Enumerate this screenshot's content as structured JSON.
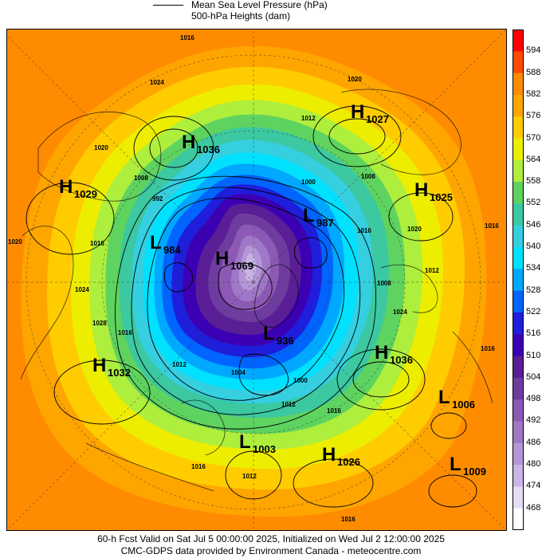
{
  "header": {
    "line1": "Mean Sea Level Pressure (hPa)",
    "line2": "500-hPa Heights (dam)"
  },
  "color_scale": {
    "ticks": [
      "594",
      "588",
      "582",
      "576",
      "570",
      "564",
      "558",
      "552",
      "546",
      "540",
      "534",
      "528",
      "522",
      "516",
      "510",
      "504",
      "498",
      "492",
      "486",
      "480",
      "474",
      "468"
    ],
    "colors": [
      "#ff0000",
      "#ff4a00",
      "#ff8c00",
      "#ffa500",
      "#ffcc00",
      "#eded00",
      "#aeee3c",
      "#5fd35f",
      "#3cc8a0",
      "#35cfe0",
      "#00e1ff",
      "#00a8ff",
      "#0064ff",
      "#1e1edc",
      "#3c00b4",
      "#5a1e96",
      "#6e3c9f",
      "#8c5ab4",
      "#a078c8",
      "#b496d7",
      "#c8b4e6",
      "#e6dcf5",
      "#ffffff"
    ]
  },
  "pressure_centers": [
    {
      "type": "H",
      "value": "1027"
    },
    {
      "type": "H",
      "value": "1036"
    },
    {
      "type": "H",
      "value": "1029"
    },
    {
      "type": "H",
      "value": "1025"
    },
    {
      "type": "L",
      "value": "987"
    },
    {
      "type": "L",
      "value": "984"
    },
    {
      "type": "H",
      "value": "1069"
    },
    {
      "type": "L",
      "value": "936"
    },
    {
      "type": "H",
      "value": "1036"
    },
    {
      "type": "H",
      "value": "1032"
    },
    {
      "type": "L",
      "value": "1006"
    },
    {
      "type": "L",
      "value": "1003"
    },
    {
      "type": "H",
      "value": "1026"
    },
    {
      "type": "L",
      "value": "1009"
    }
  ],
  "isobar_labels": [
    "1016",
    "1024",
    "1020",
    "1012",
    "1020",
    "1008",
    "1008",
    "1000",
    "992",
    "1016",
    "1016",
    "1020",
    "1024",
    "1012",
    "1012",
    "1004",
    "1000",
    "1012",
    "1016",
    "1008",
    "1024",
    "1028",
    "1016",
    "1016",
    "1012",
    "1016",
    "1016",
    "1016",
    "1020"
  ],
  "footer": {
    "line1": "60-h Fcst Valid on Sat Jul  5 00:00:00 2025, Initialized on Wed Jul  2 12:00:00 2025",
    "line2": "CMC-GDPS data provided by Environment Canada - meteocentre.com"
  }
}
